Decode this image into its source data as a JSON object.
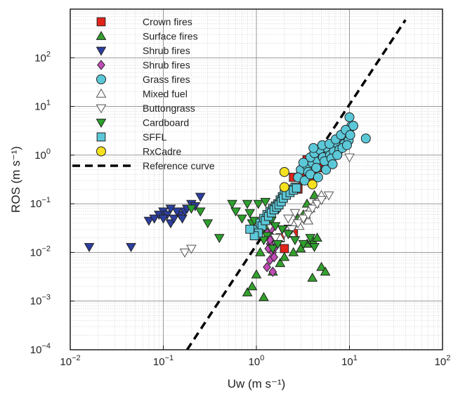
{
  "chart_data": {
    "type": "scatter",
    "xlabel": "Uw (m s⁻¹)",
    "ylabel": "ROS (m s⁻¹)",
    "xscale": "log",
    "yscale": "log",
    "xlim": [
      0.01,
      100
    ],
    "ylim": [
      0.0001,
      1000
    ],
    "x_ticks": [
      {
        "value": 0.01,
        "base": "10",
        "exp": "−2"
      },
      {
        "value": 0.1,
        "base": "10",
        "exp": "−1"
      },
      {
        "value": 1,
        "base": "10",
        "exp": "0"
      },
      {
        "value": 10,
        "base": "10",
        "exp": "1"
      },
      {
        "value": 100,
        "base": "10",
        "exp": "2"
      }
    ],
    "y_ticks": [
      {
        "value": 0.0001,
        "base": "10",
        "exp": "−4"
      },
      {
        "value": 0.001,
        "base": "10",
        "exp": "−3"
      },
      {
        "value": 0.01,
        "base": "10",
        "exp": "−2"
      },
      {
        "value": 0.1,
        "base": "10",
        "exp": "−1"
      },
      {
        "value": 1,
        "base": "10",
        "exp": "0"
      },
      {
        "value": 10,
        "base": "10",
        "exp": "1"
      },
      {
        "value": 100,
        "base": "10",
        "exp": "2"
      }
    ],
    "grid": true,
    "legend_position": "top-left",
    "series": [
      {
        "name": "Crown fires",
        "marker": "square",
        "color": "#e2231a",
        "points": [
          [
            2.5,
            0.35
          ],
          [
            3.0,
            0.45
          ],
          [
            3.5,
            0.5
          ],
          [
            4.0,
            0.4
          ],
          [
            4.5,
            0.55
          ],
          [
            4.2,
            0.35
          ],
          [
            3.8,
            0.3
          ],
          [
            3.2,
            0.3
          ],
          [
            4.8,
            0.7
          ],
          [
            2.8,
            0.2
          ],
          [
            2.2,
            0.03
          ],
          [
            1.8,
            0.02
          ],
          [
            2.5,
            0.025
          ],
          [
            2.0,
            0.012
          ],
          [
            3.5,
            0.8
          ],
          [
            4.5,
            0.9
          ]
        ]
      },
      {
        "name": "Surface fires",
        "marker": "triangle-up",
        "color": "#33a02c",
        "points": [
          [
            0.8,
            0.0015
          ],
          [
            0.9,
            0.002
          ],
          [
            1.2,
            0.0012
          ],
          [
            1.0,
            0.0035
          ],
          [
            1.5,
            0.004
          ],
          [
            1.8,
            0.006
          ],
          [
            2.0,
            0.008
          ],
          [
            2.5,
            0.01
          ],
          [
            3.0,
            0.012
          ],
          [
            3.5,
            0.015
          ],
          [
            4.0,
            0.018
          ],
          [
            4.5,
            0.02
          ],
          [
            5.0,
            0.005
          ],
          [
            4.0,
            0.003
          ],
          [
            5.5,
            0.004
          ],
          [
            2.8,
            0.05
          ],
          [
            3.2,
            0.06
          ],
          [
            3.5,
            0.1
          ],
          [
            4.2,
            0.15
          ],
          [
            1.1,
            0.01
          ],
          [
            1.3,
            0.03
          ]
        ]
      },
      {
        "name": "Shrub fires",
        "marker": "triangle-down",
        "color": "#2c3e9e",
        "points": [
          [
            0.016,
            0.013
          ],
          [
            0.045,
            0.013
          ],
          [
            0.07,
            0.045
          ],
          [
            0.08,
            0.05
          ],
          [
            0.09,
            0.06
          ],
          [
            0.1,
            0.07
          ],
          [
            0.11,
            0.06
          ],
          [
            0.12,
            0.04
          ],
          [
            0.13,
            0.05
          ],
          [
            0.15,
            0.06
          ],
          [
            0.16,
            0.05
          ],
          [
            0.17,
            0.07
          ],
          [
            0.18,
            0.08
          ],
          [
            0.2,
            0.1
          ],
          [
            0.22,
            0.09
          ],
          [
            0.25,
            0.14
          ],
          [
            0.14,
            0.07
          ],
          [
            0.1,
            0.05
          ],
          [
            0.12,
            0.08
          ]
        ]
      },
      {
        "name": "Shrub fires",
        "marker": "diamond",
        "color": "#c04bb5",
        "points": [
          [
            1.3,
            0.005
          ],
          [
            1.4,
            0.007
          ],
          [
            1.5,
            0.01
          ],
          [
            1.6,
            0.013
          ],
          [
            1.4,
            0.015
          ],
          [
            1.5,
            0.02
          ],
          [
            1.3,
            0.025
          ],
          [
            1.45,
            0.03
          ],
          [
            1.55,
            0.008
          ],
          [
            1.35,
            0.012
          ],
          [
            1.5,
            0.004
          ],
          [
            1.4,
            0.018
          ]
        ]
      },
      {
        "name": "Grass fires",
        "marker": "circle",
        "color": "#5bc8d8",
        "points": [
          [
            3.0,
            0.5
          ],
          [
            3.5,
            0.6
          ],
          [
            4.0,
            0.7
          ],
          [
            4.5,
            0.8
          ],
          [
            5.0,
            1.0
          ],
          [
            5.5,
            1.1
          ],
          [
            6.0,
            1.2
          ],
          [
            6.5,
            1.3
          ],
          [
            7.0,
            1.5
          ],
          [
            7.5,
            1.6
          ],
          [
            8.0,
            1.8
          ],
          [
            8.5,
            2.0
          ],
          [
            9.0,
            2.5
          ],
          [
            9.5,
            3.0
          ],
          [
            10.0,
            3.5
          ],
          [
            10.5,
            4.0
          ],
          [
            10.0,
            6.0
          ],
          [
            11.0,
            4.0
          ],
          [
            3.8,
            0.9
          ],
          [
            4.2,
            1.1
          ],
          [
            4.8,
            1.3
          ],
          [
            5.2,
            0.9
          ],
          [
            5.8,
            1.4
          ],
          [
            6.2,
            1.0
          ],
          [
            6.8,
            1.2
          ],
          [
            7.2,
            1.8
          ],
          [
            7.8,
            1.3
          ],
          [
            8.2,
            2.2
          ],
          [
            8.8,
            1.7
          ],
          [
            9.2,
            2.8
          ],
          [
            9.8,
            2.0
          ],
          [
            15.0,
            2.2
          ],
          [
            3.2,
            0.7
          ],
          [
            3.6,
            0.45
          ],
          [
            4.4,
            0.55
          ],
          [
            5.4,
            0.75
          ],
          [
            6.4,
            0.85
          ],
          [
            7.4,
            1.0
          ],
          [
            8.4,
            1.4
          ],
          [
            9.4,
            1.6
          ],
          [
            2.8,
            0.35
          ],
          [
            3.3,
            0.3
          ],
          [
            3.8,
            0.4
          ],
          [
            4.6,
            0.35
          ],
          [
            5.6,
            0.5
          ],
          [
            6.6,
            0.65
          ],
          [
            4.1,
            1.4
          ],
          [
            5.1,
            1.6
          ],
          [
            6.1,
            1.7
          ],
          [
            7.1,
            2.1
          ],
          [
            8.1,
            2.6
          ],
          [
            9.1,
            3.3
          ],
          [
            10.2,
            2.6
          ]
        ]
      },
      {
        "name": "Mixed fuel",
        "marker": "triangle-up-open",
        "color": "#ffffff",
        "points": [
          [
            1.8,
            0.02
          ],
          [
            2.2,
            0.03
          ],
          [
            2.6,
            0.04
          ],
          [
            3.0,
            0.05
          ],
          [
            3.4,
            0.06
          ],
          [
            3.8,
            0.08
          ],
          [
            4.2,
            0.1
          ],
          [
            4.6,
            0.12
          ],
          [
            5.0,
            0.15
          ],
          [
            2.4,
            0.025
          ],
          [
            2.9,
            0.035
          ],
          [
            3.6,
            0.045
          ]
        ]
      },
      {
        "name": "Buttongrass",
        "marker": "triangle-down-open",
        "color": "#ffffff",
        "points": [
          [
            0.17,
            0.01
          ],
          [
            0.2,
            0.012
          ],
          [
            1.6,
            0.02
          ],
          [
            2.0,
            0.025
          ],
          [
            2.4,
            0.03
          ],
          [
            2.8,
            0.04
          ],
          [
            3.2,
            0.05
          ],
          [
            3.6,
            0.06
          ],
          [
            4.0,
            0.08
          ],
          [
            4.5,
            0.1
          ],
          [
            5.0,
            0.12
          ],
          [
            6.0,
            0.15
          ],
          [
            10.0,
            0.9
          ],
          [
            1.2,
            0.04
          ],
          [
            1.4,
            0.035
          ],
          [
            2.2,
            0.05
          ],
          [
            2.6,
            0.065
          ]
        ]
      },
      {
        "name": "Cardboard",
        "marker": "triangle-down",
        "color": "#2ca02c",
        "points": [
          [
            0.2,
            0.08
          ],
          [
            0.25,
            0.07
          ],
          [
            0.3,
            0.04
          ],
          [
            0.55,
            0.1
          ],
          [
            0.6,
            0.07
          ],
          [
            0.7,
            0.05
          ],
          [
            0.8,
            0.1
          ],
          [
            0.85,
            0.065
          ],
          [
            0.9,
            0.04
          ],
          [
            0.95,
            0.03
          ],
          [
            1.0,
            0.028
          ],
          [
            1.1,
            0.025
          ],
          [
            1.3,
            0.022
          ],
          [
            1.45,
            0.045
          ],
          [
            1.6,
            0.035
          ],
          [
            1.9,
            0.03
          ],
          [
            2.2,
            0.024
          ],
          [
            2.6,
            0.018
          ],
          [
            3.2,
            0.015
          ],
          [
            3.8,
            0.02
          ],
          [
            4.2,
            0.013
          ],
          [
            1.2,
            0.018
          ],
          [
            1.5,
            0.012
          ],
          [
            1.7,
            0.015
          ],
          [
            0.95,
            0.045
          ],
          [
            1.05,
            0.1
          ],
          [
            1.25,
            0.11
          ],
          [
            0.4,
            0.02
          ]
        ]
      },
      {
        "name": "SFFL",
        "marker": "square",
        "color": "#5bc8d8",
        "points": [
          [
            1.0,
            0.03
          ],
          [
            1.1,
            0.04
          ],
          [
            1.2,
            0.05
          ],
          [
            1.3,
            0.06
          ],
          [
            1.4,
            0.07
          ],
          [
            1.5,
            0.08
          ],
          [
            1.6,
            0.09
          ],
          [
            1.7,
            0.1
          ],
          [
            1.8,
            0.12
          ],
          [
            1.9,
            0.14
          ],
          [
            2.0,
            0.16
          ],
          [
            2.2,
            0.18
          ],
          [
            2.4,
            0.2
          ],
          [
            2.6,
            0.22
          ],
          [
            1.15,
            0.035
          ],
          [
            1.25,
            0.045
          ],
          [
            1.35,
            0.055
          ],
          [
            1.45,
            0.065
          ],
          [
            1.55,
            0.075
          ],
          [
            1.65,
            0.085
          ],
          [
            1.75,
            0.095
          ],
          [
            1.85,
            0.11
          ],
          [
            1.95,
            0.13
          ],
          [
            2.1,
            0.15
          ],
          [
            2.3,
            0.17
          ],
          [
            2.5,
            0.19
          ],
          [
            2.7,
            0.21
          ],
          [
            1.05,
            0.025
          ],
          [
            0.95,
            0.022
          ],
          [
            0.85,
            0.03
          ]
        ]
      },
      {
        "name": "RxCadre",
        "marker": "circle",
        "color": "#f5e11f",
        "points": [
          [
            2.0,
            0.45
          ],
          [
            2.0,
            0.22
          ],
          [
            4.0,
            0.25
          ]
        ]
      }
    ],
    "reference_curve": {
      "name": "Reference curve",
      "style": "dashed",
      "color": "#000000",
      "points": [
        [
          0.18,
          0.0001
        ],
        [
          40,
          600
        ]
      ]
    }
  }
}
